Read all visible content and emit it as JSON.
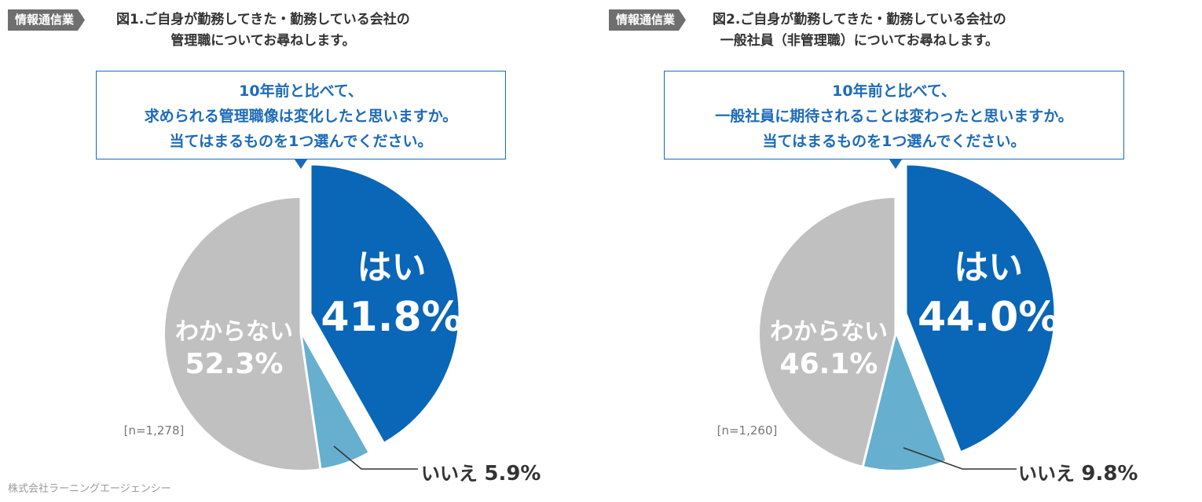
{
  "figures": [
    {
      "tag": "情報通信業",
      "title_line1": "図1.ご自身が勤務してきた・勤務している会社の",
      "title_line2": "管理職についてお尋ねします。",
      "question": [
        "10年前と比べて、",
        "求められる管理職像は変化したと思いますか。",
        "当てはまるものを1つ選んでください。"
      ],
      "n_label": "[n=1,278]"
    },
    {
      "tag": "情報通信業",
      "title_line1": "図2.ご自身が勤務してきた・勤務している会社の",
      "title_line2": "一般社員（非管理職）についてお尋ねします。",
      "question": [
        "10年前と比べて、",
        "一般社員に期待されることは変わったと思いますか。",
        "当てはまるものを1つ選んでください。"
      ],
      "n_label": "[n=1,260]"
    }
  ],
  "footer": "株式会社ラーニングエージェンシー",
  "footer2": "",
  "colors": {
    "yes": "#0a66b7",
    "no": "#66afcf",
    "unknown": "#c0c0c0"
  },
  "chart_data": [
    {
      "type": "pie",
      "title": "10年前と比べて、求められる管理職像は変化したと思いますか。",
      "n": 1278,
      "slices": [
        {
          "label": "はい",
          "value_text": "41.8%",
          "value": 41.8
        },
        {
          "label": "いいえ",
          "value_text": "5.9%",
          "value": 5.9
        },
        {
          "label": "わからない",
          "value_text": "52.3%",
          "value": 52.3
        }
      ]
    },
    {
      "type": "pie",
      "title": "10年前と比べて、一般社員に期待されることは変わったと思いますか。",
      "n": 1260,
      "slices": [
        {
          "label": "はい",
          "value_text": "44.0%",
          "value": 44.0
        },
        {
          "label": "いいえ",
          "value_text": "9.8%",
          "value": 9.8
        },
        {
          "label": "わからない",
          "value_text": "46.1%",
          "value": 46.1
        }
      ]
    }
  ]
}
